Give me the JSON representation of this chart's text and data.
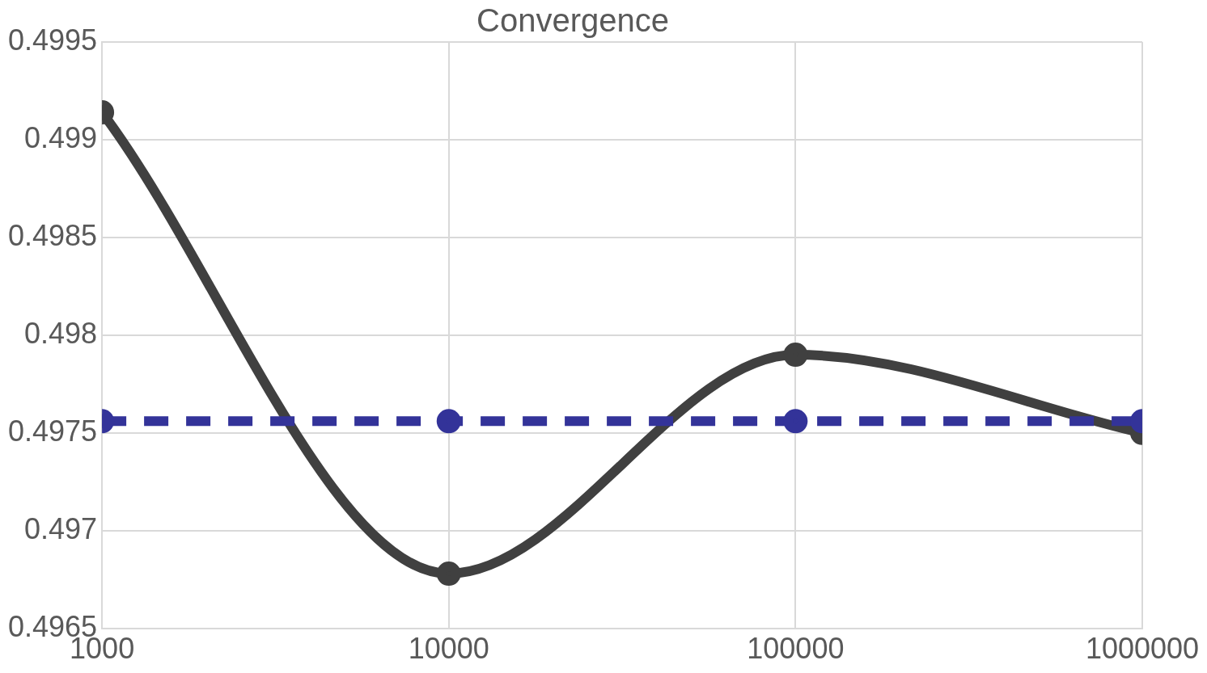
{
  "chart_data": {
    "type": "line",
    "title": "Convergence",
    "x": [
      1000,
      10000,
      100000,
      1000000
    ],
    "series": [
      {
        "color": "#404040",
        "values": [
          0.49914,
          0.49678,
          0.4979,
          0.4975
        ],
        "line_style": "solid"
      },
      {
        "color": "#333399",
        "values": [
          0.49756,
          0.49756,
          0.49756,
          0.49756
        ],
        "line_style": "dashed"
      }
    ],
    "log": "x",
    "xlim": [
      1000,
      1000000
    ],
    "xticks": [
      1000,
      10000,
      100000,
      1000000
    ],
    "ylim": [
      0.4965,
      0.4995
    ],
    "yticks": [
      0.4965,
      0.497,
      0.4975,
      0.498,
      0.4985,
      0.499,
      0.4995
    ],
    "grid": true,
    "legend": false,
    "marker": "circle"
  }
}
